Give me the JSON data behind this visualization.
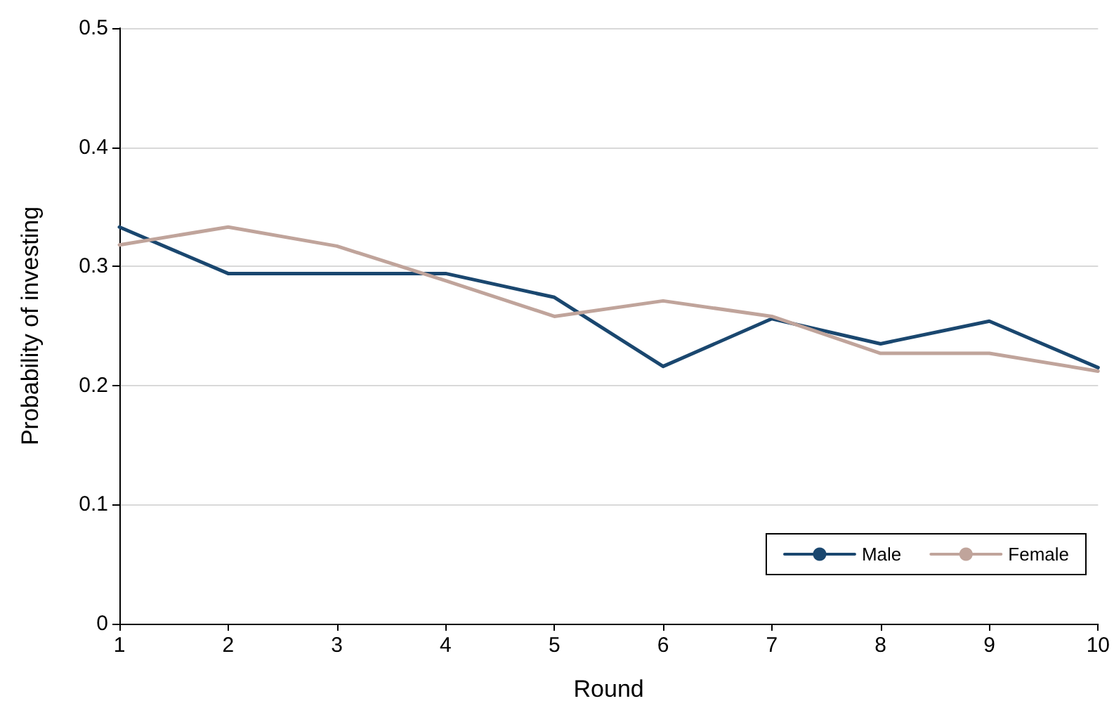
{
  "chart_data": {
    "type": "line",
    "xlabel": "Round",
    "ylabel": "Probability of investing",
    "x": [
      1,
      2,
      3,
      4,
      5,
      6,
      7,
      8,
      9,
      10
    ],
    "series": [
      {
        "name": "Male",
        "color": "#1a476f",
        "values": [
          0.333,
          0.294,
          0.294,
          0.294,
          0.274,
          0.216,
          0.256,
          0.235,
          0.254,
          0.215
        ]
      },
      {
        "name": "Female",
        "color": "#c0a49b",
        "values": [
          0.318,
          0.333,
          0.317,
          0.288,
          0.258,
          0.271,
          0.258,
          0.227,
          0.227,
          0.212
        ]
      }
    ],
    "xlim": [
      1,
      10
    ],
    "xticks": [
      1,
      2,
      3,
      4,
      5,
      6,
      7,
      8,
      9,
      10
    ],
    "ylim": [
      0,
      0.5
    ],
    "yticks": [
      0,
      0.1,
      0.2,
      0.3,
      0.4,
      0.5
    ],
    "grid": "y",
    "legend": "bottom right",
    "marker": "none",
    "line_style": "solid"
  }
}
